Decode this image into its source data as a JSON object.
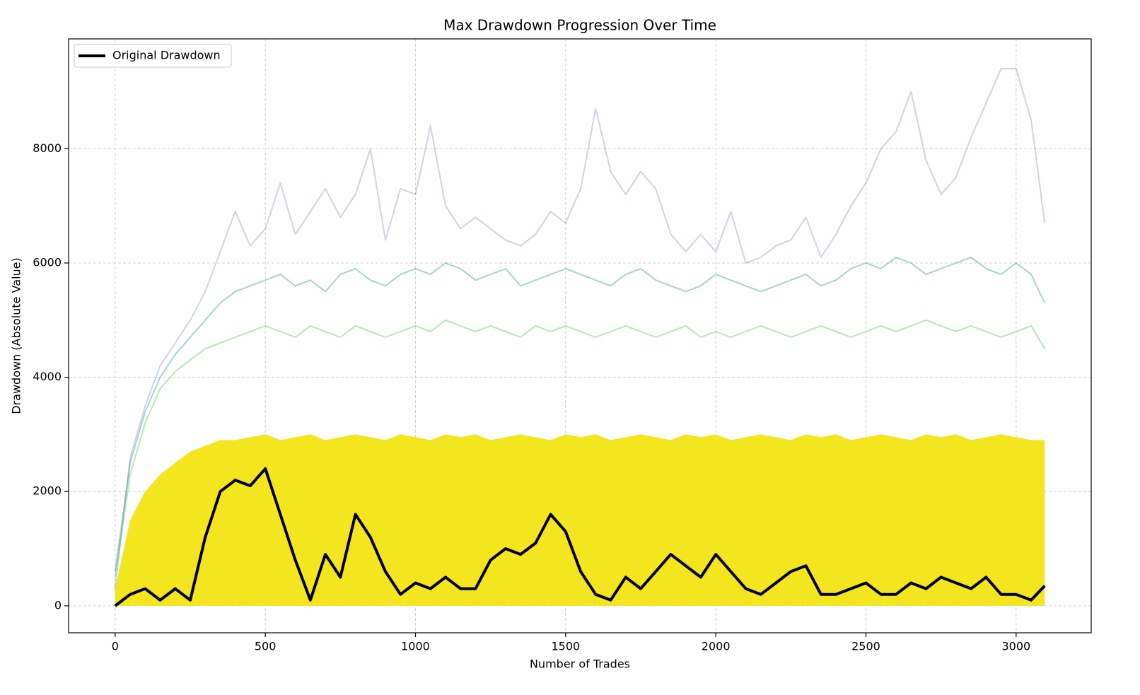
{
  "chart_data": {
    "type": "line",
    "title": "Max Drawdown Progression Over Time",
    "xlabel": "Number of Trades",
    "ylabel": "Drawdown (Absolute Value)",
    "xlim": [
      -155,
      3250
    ],
    "ylim": [
      -472,
      9922
    ],
    "xticks": [
      0,
      500,
      1000,
      1500,
      2000,
      2500,
      3000
    ],
    "yticks": [
      0,
      2000,
      4000,
      6000,
      8000
    ],
    "grid": true,
    "legend": "upper left",
    "x": [
      0,
      50,
      100,
      150,
      200,
      250,
      300,
      350,
      400,
      450,
      500,
      550,
      600,
      650,
      700,
      750,
      800,
      850,
      900,
      950,
      1000,
      1050,
      1100,
      1150,
      1200,
      1250,
      1300,
      1350,
      1400,
      1450,
      1500,
      1550,
      1600,
      1650,
      1700,
      1750,
      1800,
      1850,
      1900,
      1950,
      2000,
      2050,
      2100,
      2150,
      2200,
      2250,
      2300,
      2350,
      2400,
      2450,
      2500,
      2550,
      2600,
      2650,
      2700,
      2750,
      2800,
      2850,
      2900,
      2950,
      3000,
      3050,
      3095
    ],
    "series": [
      {
        "color": "#f3e51e",
        "fill": true,
        "opacity": 1,
        "values": [
          300,
          1500,
          2000,
          2300,
          2500,
          2700,
          2800,
          2900,
          2900,
          2950,
          3000,
          2900,
          2950,
          3000,
          2900,
          2950,
          3000,
          2950,
          2900,
          3000,
          2950,
          2900,
          3000,
          2950,
          3000,
          2900,
          2950,
          3000,
          2950,
          2900,
          3000,
          2950,
          3000,
          2900,
          2950,
          3000,
          2950,
          2900,
          3000,
          2950,
          3000,
          2900,
          2950,
          3000,
          2950,
          2900,
          3000,
          2950,
          3000,
          2900,
          2950,
          3000,
          2950,
          2900,
          3000,
          2950,
          3000,
          2900,
          2950,
          3000,
          2950,
          2900,
          2900
        ]
      },
      {
        "color": "#5ec962",
        "fill": false,
        "opacity": 0.45,
        "values": [
          500,
          2300,
          3200,
          3800,
          4100,
          4300,
          4500,
          4600,
          4700,
          4800,
          4900,
          4800,
          4700,
          4900,
          4800,
          4700,
          4900,
          4800,
          4700,
          4800,
          4900,
          4800,
          5000,
          4900,
          4800,
          4900,
          4800,
          4700,
          4900,
          4800,
          4900,
          4800,
          4700,
          4800,
          4900,
          4800,
          4700,
          4800,
          4900,
          4700,
          4800,
          4700,
          4800,
          4900,
          4800,
          4700,
          4800,
          4900,
          4800,
          4700,
          4800,
          4900,
          4800,
          4900,
          5000,
          4900,
          4800,
          4900,
          4800,
          4700,
          4800,
          4900,
          4500
        ]
      },
      {
        "color": "#21918c",
        "fill": false,
        "opacity": 0.4,
        "values": [
          600,
          2500,
          3400,
          4000,
          4400,
          4700,
          5000,
          5300,
          5500,
          5600,
          5700,
          5800,
          5600,
          5700,
          5500,
          5800,
          5900,
          5700,
          5600,
          5800,
          5900,
          5800,
          6000,
          5900,
          5700,
          5800,
          5900,
          5600,
          5700,
          5800,
          5900,
          5800,
          5700,
          5600,
          5800,
          5900,
          5700,
          5600,
          5500,
          5600,
          5800,
          5700,
          5600,
          5500,
          5600,
          5700,
          5800,
          5600,
          5700,
          5900,
          6000,
          5900,
          6100,
          6000,
          5800,
          5900,
          6000,
          6100,
          5900,
          5800,
          6000,
          5800,
          5300
        ]
      },
      {
        "color": "#3b528b",
        "fill": false,
        "opacity": 0.25,
        "values": [
          300,
          2600,
          3500,
          4200,
          4600,
          5000,
          5500,
          6200,
          6900,
          6300,
          6600,
          7400,
          6500,
          6900,
          7300,
          6800,
          7200,
          8000,
          6400,
          7300,
          7200,
          8400,
          7000,
          6600,
          6800,
          6600,
          6400,
          6300,
          6500,
          6900,
          6700,
          7300,
          8700,
          7600,
          7200,
          7600,
          7300,
          6500,
          6200,
          6500,
          6200,
          6900,
          6000,
          6100,
          6300,
          6400,
          6800,
          6100,
          6500,
          7000,
          7400,
          8000,
          8300,
          9000,
          7800,
          7200,
          7500,
          8200,
          8800,
          9400,
          9400,
          8500,
          6700
        ]
      },
      {
        "name": "Original Drawdown",
        "color": "#000000",
        "fill": false,
        "opacity": 1,
        "width": 4,
        "values": [
          0,
          200,
          300,
          100,
          300,
          100,
          1200,
          2000,
          2200,
          2100,
          2400,
          1600,
          800,
          100,
          900,
          500,
          1600,
          1200,
          600,
          200,
          400,
          300,
          500,
          300,
          300,
          800,
          1000,
          900,
          1100,
          1600,
          1300,
          600,
          200,
          100,
          500,
          300,
          600,
          900,
          700,
          500,
          900,
          600,
          300,
          200,
          400,
          600,
          700,
          200,
          200,
          300,
          400,
          200,
          200,
          400,
          300,
          500,
          400,
          300,
          500,
          200,
          200,
          100,
          350
        ]
      }
    ]
  }
}
